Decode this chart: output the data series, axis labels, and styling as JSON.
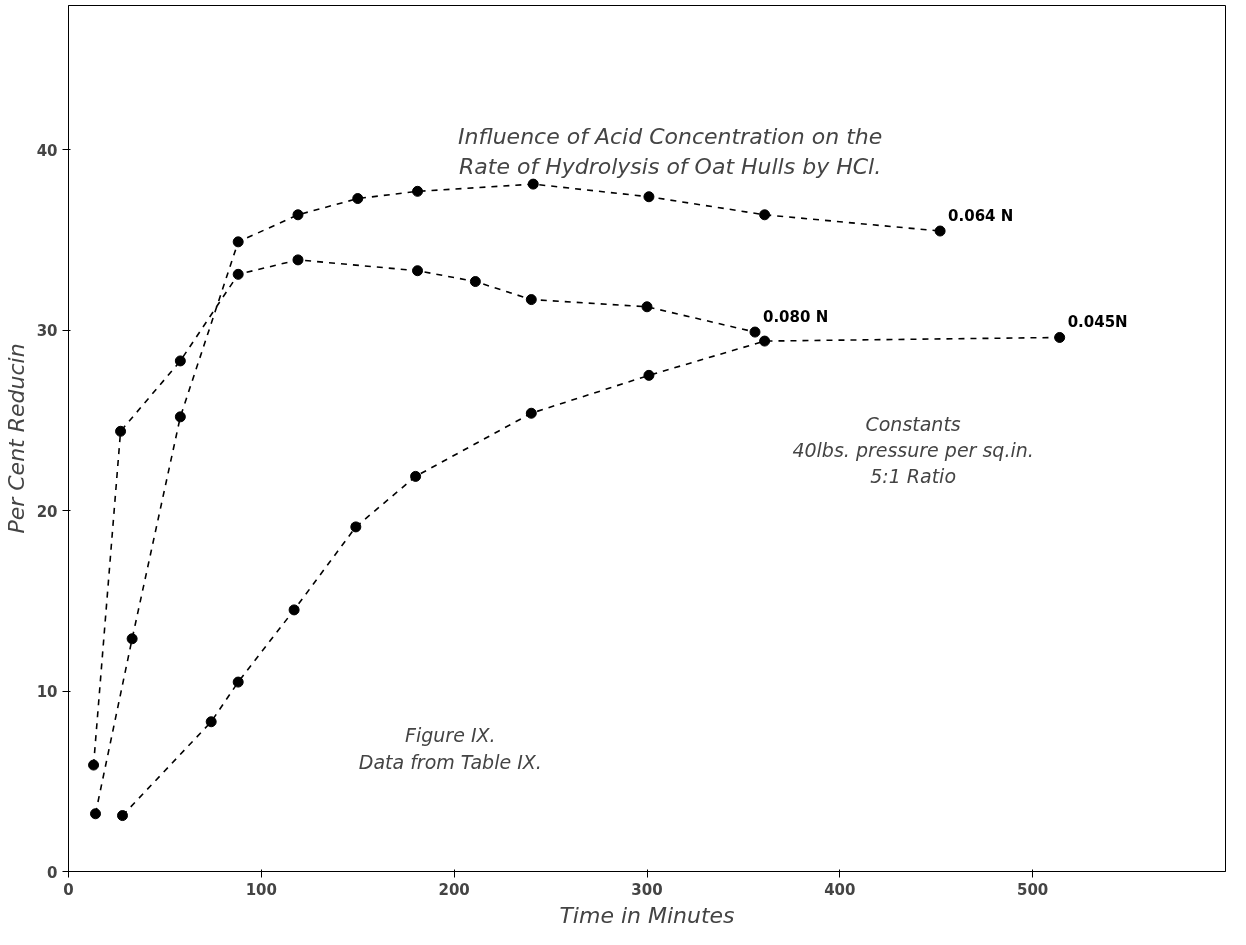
{
  "chart_data": {
    "type": "line",
    "title": "Influence of Acid Concentration on the\nRate of Hydrolysis of Oat Hulls by HCl.",
    "xlabel": "Time in Minutes",
    "ylabel": "Per Cent Reducin",
    "xlim": [
      0,
      600
    ],
    "ylim": [
      0,
      48
    ],
    "xticks": [
      0,
      100,
      200,
      300,
      400,
      500
    ],
    "yticks": [
      0,
      10,
      20,
      30,
      40
    ],
    "grid": false,
    "marker": "circle",
    "line_style": "dashed",
    "series": [
      {
        "name": "0.064 N",
        "color": "#000000",
        "x": [
          14,
          33,
          58,
          88,
          119,
          150,
          181,
          241,
          301,
          361,
          452
        ],
        "values": [
          3.2,
          12.9,
          25.2,
          34.9,
          36.4,
          37.3,
          37.7,
          38.1,
          37.4,
          36.4,
          35.5
        ]
      },
      {
        "name": "0.080 N",
        "color": "#000000",
        "x": [
          13,
          27,
          58,
          88,
          119,
          181,
          211,
          240,
          300,
          356
        ],
        "values": [
          5.9,
          24.4,
          28.3,
          33.1,
          33.9,
          33.3,
          32.7,
          31.7,
          31.3,
          29.9
        ]
      },
      {
        "name": "0.045N",
        "color": "#000000",
        "x": [
          28,
          74,
          88,
          117,
          149,
          180,
          240,
          301,
          361,
          514
        ],
        "values": [
          3.1,
          8.3,
          10.5,
          14.5,
          19.1,
          21.9,
          25.4,
          27.5,
          29.4,
          29.6
        ]
      }
    ],
    "annotations": [
      "Constants\n40lbs. pressure per sq.in.\n5:1 Ratio",
      "Figure IX.\nData from Table IX."
    ]
  }
}
